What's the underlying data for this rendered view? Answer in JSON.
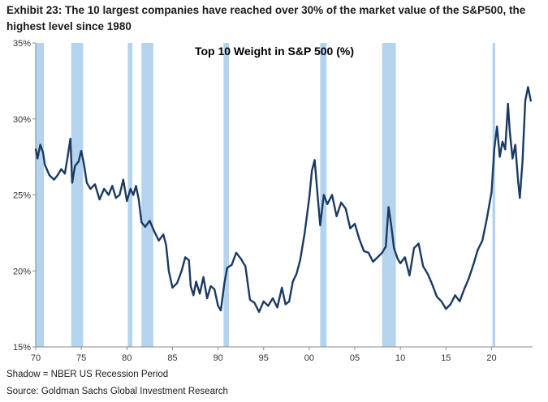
{
  "exhibit_title": "Exhibit 23: The 10 largest companies have reached over 30% of the market value of the S&P500, the highest level since 1980",
  "footnotes": {
    "shadow": "Shadow = NBER US Recession Period",
    "source": "Source: Goldman Sachs Global Investment Research"
  },
  "colors": {
    "line": "#1b3a63",
    "recession": "#b3d3ef",
    "axis": "#8a8a8a"
  },
  "chart_data": {
    "type": "line",
    "title": "Top 10 Weight in S&P 500 (%)",
    "xlabel": "",
    "ylabel": "",
    "xlim": [
      1970,
      2024.5
    ],
    "ylim": [
      15,
      35
    ],
    "grid": false,
    "x_ticks": [
      1970,
      1975,
      1980,
      1985,
      1990,
      1995,
      2000,
      2005,
      2010,
      2015,
      2020
    ],
    "x_tick_labels": [
      "70",
      "75",
      "80",
      "85",
      "90",
      "95",
      "00",
      "05",
      "10",
      "15",
      "20"
    ],
    "y_ticks": [
      15,
      20,
      25,
      30,
      35
    ],
    "y_tick_labels": [
      "15%",
      "20%",
      "25%",
      "30%",
      "35%"
    ],
    "recessions": [
      [
        1970.0,
        1970.9
      ],
      [
        1973.9,
        1975.2
      ],
      [
        1980.1,
        1980.6
      ],
      [
        1981.6,
        1982.9
      ],
      [
        1990.6,
        1991.2
      ],
      [
        2001.2,
        2001.9
      ],
      [
        2008.0,
        2009.5
      ],
      [
        2020.1,
        2020.4
      ]
    ],
    "series": [
      {
        "values": [
          [
            1970.0,
            28.0
          ],
          [
            1970.2,
            27.4
          ],
          [
            1970.5,
            28.3
          ],
          [
            1970.8,
            27.8
          ],
          [
            1971.0,
            27.0
          ],
          [
            1971.5,
            26.3
          ],
          [
            1972.0,
            26.0
          ],
          [
            1972.4,
            26.3
          ],
          [
            1972.8,
            26.7
          ],
          [
            1973.2,
            26.4
          ],
          [
            1973.5,
            27.5
          ],
          [
            1973.8,
            28.7
          ],
          [
            1974.0,
            25.8
          ],
          [
            1974.3,
            26.9
          ],
          [
            1974.7,
            27.2
          ],
          [
            1975.0,
            27.9
          ],
          [
            1975.3,
            27.0
          ],
          [
            1975.6,
            25.8
          ],
          [
            1976.0,
            25.4
          ],
          [
            1976.5,
            25.7
          ],
          [
            1977.0,
            24.7
          ],
          [
            1977.5,
            25.4
          ],
          [
            1978.0,
            25.0
          ],
          [
            1978.4,
            25.6
          ],
          [
            1978.8,
            24.8
          ],
          [
            1979.2,
            25.0
          ],
          [
            1979.6,
            26.0
          ],
          [
            1980.0,
            24.6
          ],
          [
            1980.4,
            25.4
          ],
          [
            1980.7,
            25.0
          ],
          [
            1981.0,
            25.6
          ],
          [
            1981.3,
            24.7
          ],
          [
            1981.6,
            23.2
          ],
          [
            1982.0,
            22.9
          ],
          [
            1982.5,
            23.3
          ],
          [
            1983.0,
            22.6
          ],
          [
            1983.5,
            22.0
          ],
          [
            1984.0,
            22.4
          ],
          [
            1984.3,
            21.7
          ],
          [
            1984.6,
            20.0
          ],
          [
            1985.0,
            18.9
          ],
          [
            1985.5,
            19.2
          ],
          [
            1986.0,
            20.0
          ],
          [
            1986.4,
            20.9
          ],
          [
            1986.8,
            20.7
          ],
          [
            1987.0,
            19.0
          ],
          [
            1987.3,
            18.4
          ],
          [
            1987.6,
            19.3
          ],
          [
            1988.0,
            18.5
          ],
          [
            1988.4,
            19.6
          ],
          [
            1988.8,
            18.2
          ],
          [
            1989.2,
            19.0
          ],
          [
            1989.6,
            18.8
          ],
          [
            1990.0,
            17.7
          ],
          [
            1990.3,
            17.4
          ],
          [
            1990.7,
            19.2
          ],
          [
            1991.0,
            20.2
          ],
          [
            1991.5,
            20.4
          ],
          [
            1992.0,
            21.2
          ],
          [
            1992.5,
            20.8
          ],
          [
            1993.0,
            20.3
          ],
          [
            1993.5,
            18.1
          ],
          [
            1994.0,
            17.9
          ],
          [
            1994.5,
            17.3
          ],
          [
            1995.0,
            18.0
          ],
          [
            1995.5,
            17.7
          ],
          [
            1996.0,
            18.2
          ],
          [
            1996.5,
            17.6
          ],
          [
            1997.0,
            18.9
          ],
          [
            1997.4,
            17.8
          ],
          [
            1997.8,
            18.0
          ],
          [
            1998.2,
            19.3
          ],
          [
            1998.6,
            19.8
          ],
          [
            1999.0,
            20.7
          ],
          [
            1999.5,
            22.5
          ],
          [
            2000.0,
            24.8
          ],
          [
            2000.3,
            26.6
          ],
          [
            2000.6,
            27.3
          ],
          [
            2000.9,
            25.1
          ],
          [
            2001.2,
            23.0
          ],
          [
            2001.6,
            25.0
          ],
          [
            2002.0,
            24.4
          ],
          [
            2002.5,
            25.0
          ],
          [
            2003.0,
            23.6
          ],
          [
            2003.5,
            24.5
          ],
          [
            2004.0,
            24.1
          ],
          [
            2004.5,
            22.8
          ],
          [
            2005.0,
            23.1
          ],
          [
            2005.5,
            22.1
          ],
          [
            2006.0,
            21.3
          ],
          [
            2006.5,
            21.2
          ],
          [
            2007.0,
            20.6
          ],
          [
            2007.5,
            20.9
          ],
          [
            2008.0,
            21.2
          ],
          [
            2008.4,
            21.6
          ],
          [
            2008.7,
            24.2
          ],
          [
            2009.0,
            23.0
          ],
          [
            2009.3,
            21.5
          ],
          [
            2009.7,
            20.8
          ],
          [
            2010.0,
            20.5
          ],
          [
            2010.5,
            20.9
          ],
          [
            2011.0,
            19.7
          ],
          [
            2011.5,
            21.5
          ],
          [
            2012.0,
            21.8
          ],
          [
            2012.5,
            20.3
          ],
          [
            2013.0,
            19.8
          ],
          [
            2013.5,
            19.1
          ],
          [
            2014.0,
            18.3
          ],
          [
            2014.5,
            18.0
          ],
          [
            2015.0,
            17.5
          ],
          [
            2015.5,
            17.8
          ],
          [
            2016.0,
            18.4
          ],
          [
            2016.5,
            18.0
          ],
          [
            2017.0,
            18.8
          ],
          [
            2017.5,
            19.5
          ],
          [
            2018.0,
            20.4
          ],
          [
            2018.5,
            21.4
          ],
          [
            2019.0,
            22.0
          ],
          [
            2019.5,
            23.5
          ],
          [
            2020.0,
            25.2
          ],
          [
            2020.3,
            28.0
          ],
          [
            2020.6,
            29.5
          ],
          [
            2020.9,
            27.5
          ],
          [
            2021.2,
            28.5
          ],
          [
            2021.5,
            28.0
          ],
          [
            2021.8,
            31.0
          ],
          [
            2022.0,
            29.2
          ],
          [
            2022.3,
            27.4
          ],
          [
            2022.6,
            28.3
          ],
          [
            2022.9,
            26.0
          ],
          [
            2023.1,
            24.8
          ],
          [
            2023.4,
            27.2
          ],
          [
            2023.7,
            31.2
          ],
          [
            2024.0,
            32.1
          ],
          [
            2024.3,
            31.2
          ]
        ]
      }
    ]
  }
}
